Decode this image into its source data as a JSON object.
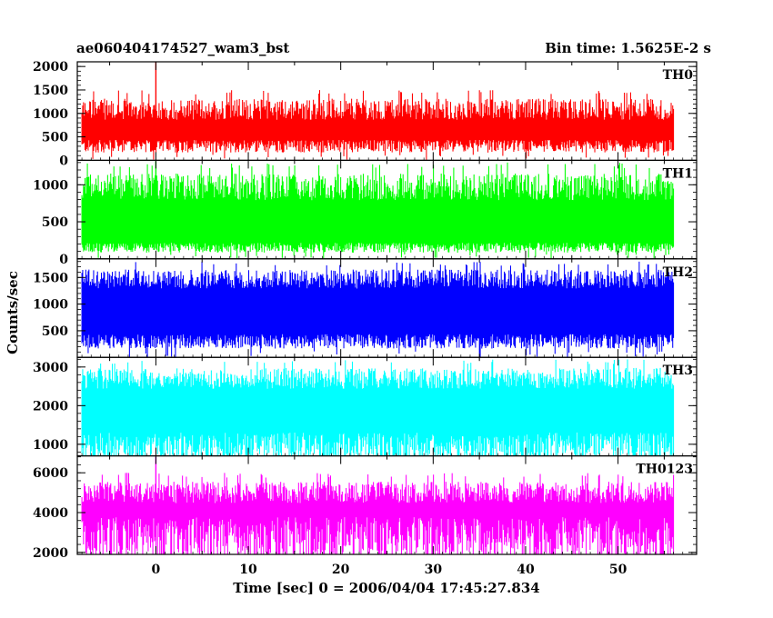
{
  "chart_data": {
    "type": "line",
    "title": "ae060404174527_wam3_bst",
    "subtitle": "Bin time: 1.5625E-2 s",
    "xlabel": "Time [sec] 0 = 2006/04/04 17:45:27.834",
    "ylabel": "Counts/sec",
    "xlim": [
      -8.5,
      58.5
    ],
    "x_ticks": [
      0,
      10,
      20,
      30,
      40,
      50
    ],
    "x_range_data": [
      -8,
      56
    ],
    "bin_time": 0.015625,
    "panels": [
      {
        "name": "TH0",
        "color": "#ff0000",
        "ylim": [
          0,
          2100
        ],
        "y_ticks": [
          0,
          500,
          1000,
          1500,
          2000
        ],
        "baseline": 300,
        "typical_high": 1000,
        "peak_high": 1500,
        "spikes": [
          {
            "x": 0,
            "y": 2100
          }
        ]
      },
      {
        "name": "TH1",
        "color": "#00ff00",
        "ylim": [
          0,
          1330
        ],
        "y_ticks": [
          0,
          500,
          1000
        ],
        "baseline": 150,
        "typical_high": 900,
        "peak_high": 1300,
        "spikes": [
          {
            "x": 0,
            "y": 1320
          }
        ]
      },
      {
        "name": "TH2",
        "color": "#0000ff",
        "ylim": [
          0,
          1850
        ],
        "y_ticks": [
          500,
          1000,
          1500
        ],
        "baseline": 300,
        "typical_high": 1400,
        "peak_high": 1800,
        "spikes": []
      },
      {
        "name": "TH3",
        "color": "#00ffff",
        "ylim": [
          700,
          3250
        ],
        "y_ticks": [
          1000,
          2000,
          3000
        ],
        "baseline": 900,
        "typical_high": 2600,
        "peak_high": 3200,
        "spikes": []
      },
      {
        "name": "TH0123",
        "color": "#ff00ff",
        "ylim": [
          1900,
          6850
        ],
        "y_ticks": [
          2000,
          4000,
          6000
        ],
        "baseline": 2600,
        "typical_high": 4800,
        "peak_high": 6000,
        "spikes": [
          {
            "x": 0,
            "y": 6800
          }
        ]
      }
    ]
  }
}
